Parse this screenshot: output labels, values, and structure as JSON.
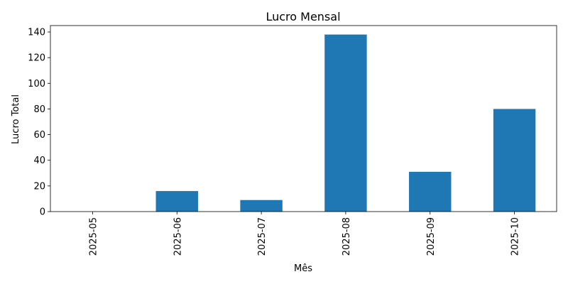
{
  "chart_data": {
    "type": "bar",
    "title": "Lucro Mensal",
    "xlabel": "Mês",
    "ylabel": "Lucro Total",
    "categories": [
      "2025-05",
      "2025-06",
      "2025-07",
      "2025-08",
      "2025-09",
      "2025-10"
    ],
    "values": [
      0,
      16,
      9,
      138,
      31,
      80
    ],
    "ylim": [
      0,
      145
    ],
    "yticks": [
      0,
      20,
      40,
      60,
      80,
      100,
      120,
      140
    ],
    "bar_color": "#1f77b4",
    "grid": false,
    "legend": "none"
  }
}
